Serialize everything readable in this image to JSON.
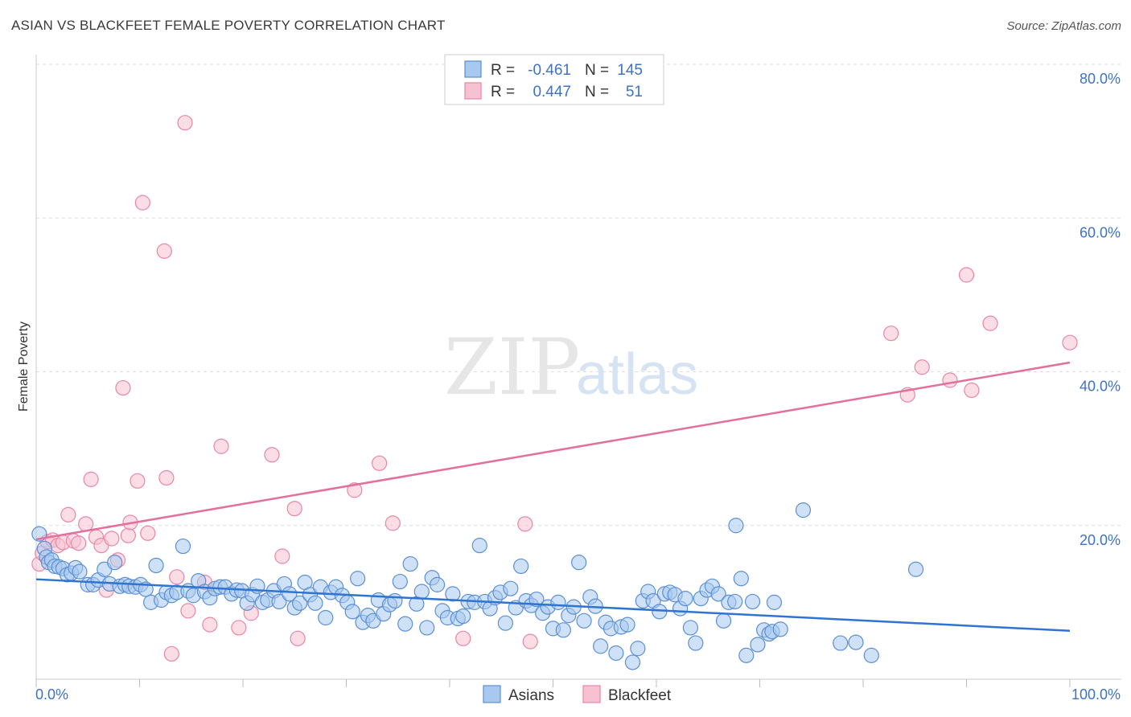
{
  "title": "ASIAN VS BLACKFEET FEMALE POVERTY CORRELATION CHART",
  "source": "Source: ZipAtlas.com",
  "watermark": {
    "part1": "ZIP",
    "part2": "atlas"
  },
  "legend": {
    "rows": [
      {
        "r_label": "R =",
        "r_value": "-0.461",
        "n_label": "N =",
        "n_value": "145"
      },
      {
        "r_label": "R =",
        "r_value": "0.447",
        "n_label": "N =",
        "n_value": "51"
      }
    ]
  },
  "bottom_legend": [
    "Asians",
    "Blackfeet"
  ],
  "colors": {
    "asians_fill": "#a8c8ef",
    "asians_stroke": "#5b8fd6",
    "asians_line": "#2f74d0",
    "blackfeet_fill": "#f7c1d2",
    "blackfeet_stroke": "#e886a6",
    "blackfeet_line": "#e3709a",
    "tick_text": "#3d72c4",
    "grid": "#dddddd"
  },
  "chart_data": {
    "type": "scatter",
    "title": "ASIAN VS BLACKFEET FEMALE POVERTY CORRELATION CHART",
    "xlabel": "",
    "ylabel": "Female Poverty",
    "xlim": [
      0,
      100
    ],
    "ylim": [
      0,
      80
    ],
    "x_tick_labels": [
      "0.0%",
      "100.0%"
    ],
    "y_ticks": [
      20,
      40,
      60,
      80
    ],
    "y_tick_labels": [
      "20.0%",
      "40.0%",
      "60.0%",
      "80.0%"
    ],
    "grid": "horizontal dashed",
    "legend_position": "top-center",
    "series": [
      {
        "name": "Asians",
        "r": -0.461,
        "n": 145,
        "trend": {
          "x": [
            0,
            100
          ],
          "y": [
            13.0,
            6.3
          ]
        },
        "points": [
          [
            0.3,
            18.9
          ],
          [
            0.8,
            17.0
          ],
          [
            1.0,
            15.9
          ],
          [
            1.2,
            15.2
          ],
          [
            1.5,
            15.5
          ],
          [
            1.8,
            14.7
          ],
          [
            2.2,
            14.6
          ],
          [
            2.6,
            14.4
          ],
          [
            3.0,
            13.6
          ],
          [
            3.4,
            13.8
          ],
          [
            3.8,
            14.5
          ],
          [
            4.2,
            14.0
          ],
          [
            5.0,
            12.3
          ],
          [
            5.5,
            12.3
          ],
          [
            6.0,
            12.9
          ],
          [
            6.6,
            14.3
          ],
          [
            7.1,
            12.4
          ],
          [
            7.6,
            15.2
          ],
          [
            8.1,
            12.1
          ],
          [
            8.6,
            12.3
          ],
          [
            9.0,
            12.1
          ],
          [
            9.6,
            12.0
          ],
          [
            10.1,
            12.3
          ],
          [
            10.6,
            11.7
          ],
          [
            11.1,
            10.0
          ],
          [
            11.6,
            14.8
          ],
          [
            12.1,
            10.3
          ],
          [
            12.6,
            11.3
          ],
          [
            13.1,
            10.9
          ],
          [
            13.6,
            11.3
          ],
          [
            14.2,
            17.3
          ],
          [
            14.7,
            11.5
          ],
          [
            15.2,
            10.9
          ],
          [
            15.7,
            12.8
          ],
          [
            16.3,
            11.4
          ],
          [
            16.8,
            10.6
          ],
          [
            17.3,
            11.8
          ],
          [
            17.8,
            12.0
          ],
          [
            18.3,
            12.0
          ],
          [
            18.9,
            11.1
          ],
          [
            19.4,
            11.6
          ],
          [
            19.9,
            11.5
          ],
          [
            20.4,
            9.9
          ],
          [
            20.9,
            11.0
          ],
          [
            21.4,
            12.1
          ],
          [
            21.9,
            10.0
          ],
          [
            22.4,
            10.3
          ],
          [
            23.0,
            11.5
          ],
          [
            23.5,
            10.1
          ],
          [
            24.0,
            12.4
          ],
          [
            24.5,
            11.1
          ],
          [
            25.0,
            9.3
          ],
          [
            25.5,
            9.9
          ],
          [
            26.0,
            12.6
          ],
          [
            26.5,
            11.0
          ],
          [
            27.0,
            9.9
          ],
          [
            27.5,
            12.0
          ],
          [
            28.0,
            8.0
          ],
          [
            28.5,
            11.3
          ],
          [
            29.0,
            12.0
          ],
          [
            29.6,
            10.9
          ],
          [
            30.1,
            10.0
          ],
          [
            30.6,
            8.8
          ],
          [
            31.1,
            13.1
          ],
          [
            31.6,
            7.4
          ],
          [
            32.1,
            8.3
          ],
          [
            32.6,
            7.6
          ],
          [
            33.1,
            10.3
          ],
          [
            33.6,
            8.5
          ],
          [
            34.2,
            9.7
          ],
          [
            34.7,
            10.2
          ],
          [
            35.2,
            12.7
          ],
          [
            35.7,
            7.2
          ],
          [
            36.2,
            15.0
          ],
          [
            36.8,
            9.8
          ],
          [
            37.3,
            11.4
          ],
          [
            37.8,
            6.7
          ],
          [
            38.3,
            13.2
          ],
          [
            38.8,
            12.3
          ],
          [
            39.3,
            8.9
          ],
          [
            39.8,
            8.0
          ],
          [
            40.3,
            11.1
          ],
          [
            40.8,
            7.9
          ],
          [
            41.3,
            8.2
          ],
          [
            41.8,
            10.1
          ],
          [
            42.4,
            10.0
          ],
          [
            42.9,
            17.4
          ],
          [
            43.4,
            10.1
          ],
          [
            43.9,
            9.2
          ],
          [
            44.4,
            10.6
          ],
          [
            44.9,
            11.3
          ],
          [
            45.4,
            7.3
          ],
          [
            45.9,
            11.8
          ],
          [
            46.4,
            9.3
          ],
          [
            46.9,
            14.7
          ],
          [
            47.4,
            10.2
          ],
          [
            47.9,
            9.6
          ],
          [
            48.4,
            10.4
          ],
          [
            49.0,
            8.6
          ],
          [
            49.5,
            9.4
          ],
          [
            50.0,
            6.6
          ],
          [
            50.5,
            10.0
          ],
          [
            51.0,
            6.4
          ],
          [
            51.5,
            8.3
          ],
          [
            52.0,
            9.4
          ],
          [
            52.5,
            15.2
          ],
          [
            53.0,
            7.6
          ],
          [
            53.6,
            10.7
          ],
          [
            54.1,
            9.5
          ],
          [
            54.6,
            4.3
          ],
          [
            55.1,
            7.4
          ],
          [
            55.6,
            6.6
          ],
          [
            56.1,
            3.4
          ],
          [
            56.6,
            6.8
          ],
          [
            57.2,
            7.1
          ],
          [
            57.7,
            2.2
          ],
          [
            58.2,
            4.0
          ],
          [
            58.7,
            10.2
          ],
          [
            59.2,
            11.4
          ],
          [
            59.7,
            10.2
          ],
          [
            60.3,
            8.8
          ],
          [
            60.8,
            11.1
          ],
          [
            61.3,
            11.3
          ],
          [
            61.8,
            11.0
          ],
          [
            62.3,
            9.2
          ],
          [
            62.8,
            10.5
          ],
          [
            63.3,
            6.7
          ],
          [
            63.8,
            4.7
          ],
          [
            64.3,
            10.5
          ],
          [
            64.9,
            11.6
          ],
          [
            65.4,
            12.1
          ],
          [
            66.0,
            11.1
          ],
          [
            66.5,
            7.6
          ],
          [
            67.0,
            10.0
          ],
          [
            67.6,
            10.1
          ],
          [
            67.7,
            20.0
          ],
          [
            68.2,
            13.1
          ],
          [
            68.7,
            3.1
          ],
          [
            69.3,
            10.1
          ],
          [
            69.8,
            4.5
          ],
          [
            70.4,
            6.4
          ],
          [
            70.9,
            5.9
          ],
          [
            71.2,
            6.2
          ],
          [
            71.4,
            10.0
          ],
          [
            72.0,
            6.5
          ],
          [
            74.2,
            22.0
          ],
          [
            77.8,
            4.7
          ],
          [
            79.3,
            4.8
          ],
          [
            80.8,
            3.1
          ],
          [
            85.1,
            14.3
          ]
        ]
      },
      {
        "name": "Blackfeet",
        "r": 0.447,
        "n": 51,
        "trend": {
          "x": [
            0,
            100
          ],
          "y": [
            18.2,
            41.2
          ]
        },
        "points": [
          [
            0.3,
            15.0
          ],
          [
            0.6,
            16.4
          ],
          [
            1.1,
            17.9
          ],
          [
            1.6,
            18.1
          ],
          [
            2.1,
            17.4
          ],
          [
            2.6,
            17.8
          ],
          [
            3.1,
            21.4
          ],
          [
            3.6,
            18.0
          ],
          [
            4.1,
            17.7
          ],
          [
            4.8,
            20.2
          ],
          [
            5.3,
            26.0
          ],
          [
            5.8,
            18.5
          ],
          [
            6.3,
            17.4
          ],
          [
            6.8,
            11.6
          ],
          [
            7.3,
            18.3
          ],
          [
            7.9,
            15.5
          ],
          [
            8.4,
            37.9
          ],
          [
            8.9,
            18.7
          ],
          [
            9.1,
            20.4
          ],
          [
            9.8,
            25.8
          ],
          [
            10.3,
            62.0
          ],
          [
            10.8,
            19.0
          ],
          [
            12.4,
            55.7
          ],
          [
            12.6,
            26.2
          ],
          [
            13.1,
            3.3
          ],
          [
            13.6,
            13.3
          ],
          [
            14.4,
            72.4
          ],
          [
            14.7,
            8.9
          ],
          [
            16.3,
            12.6
          ],
          [
            16.8,
            7.1
          ],
          [
            17.9,
            30.3
          ],
          [
            19.6,
            6.7
          ],
          [
            20.8,
            8.6
          ],
          [
            22.8,
            29.2
          ],
          [
            23.8,
            16.0
          ],
          [
            25.0,
            22.2
          ],
          [
            25.3,
            5.3
          ],
          [
            30.8,
            24.6
          ],
          [
            33.2,
            28.1
          ],
          [
            34.5,
            20.3
          ],
          [
            41.3,
            5.3
          ],
          [
            47.3,
            20.2
          ],
          [
            47.8,
            4.9
          ],
          [
            82.7,
            45.0
          ],
          [
            84.3,
            37.0
          ],
          [
            85.7,
            40.6
          ],
          [
            88.4,
            38.9
          ],
          [
            90.0,
            52.6
          ],
          [
            90.5,
            37.6
          ],
          [
            92.3,
            46.3
          ],
          [
            100.0,
            43.8
          ]
        ]
      }
    ]
  }
}
